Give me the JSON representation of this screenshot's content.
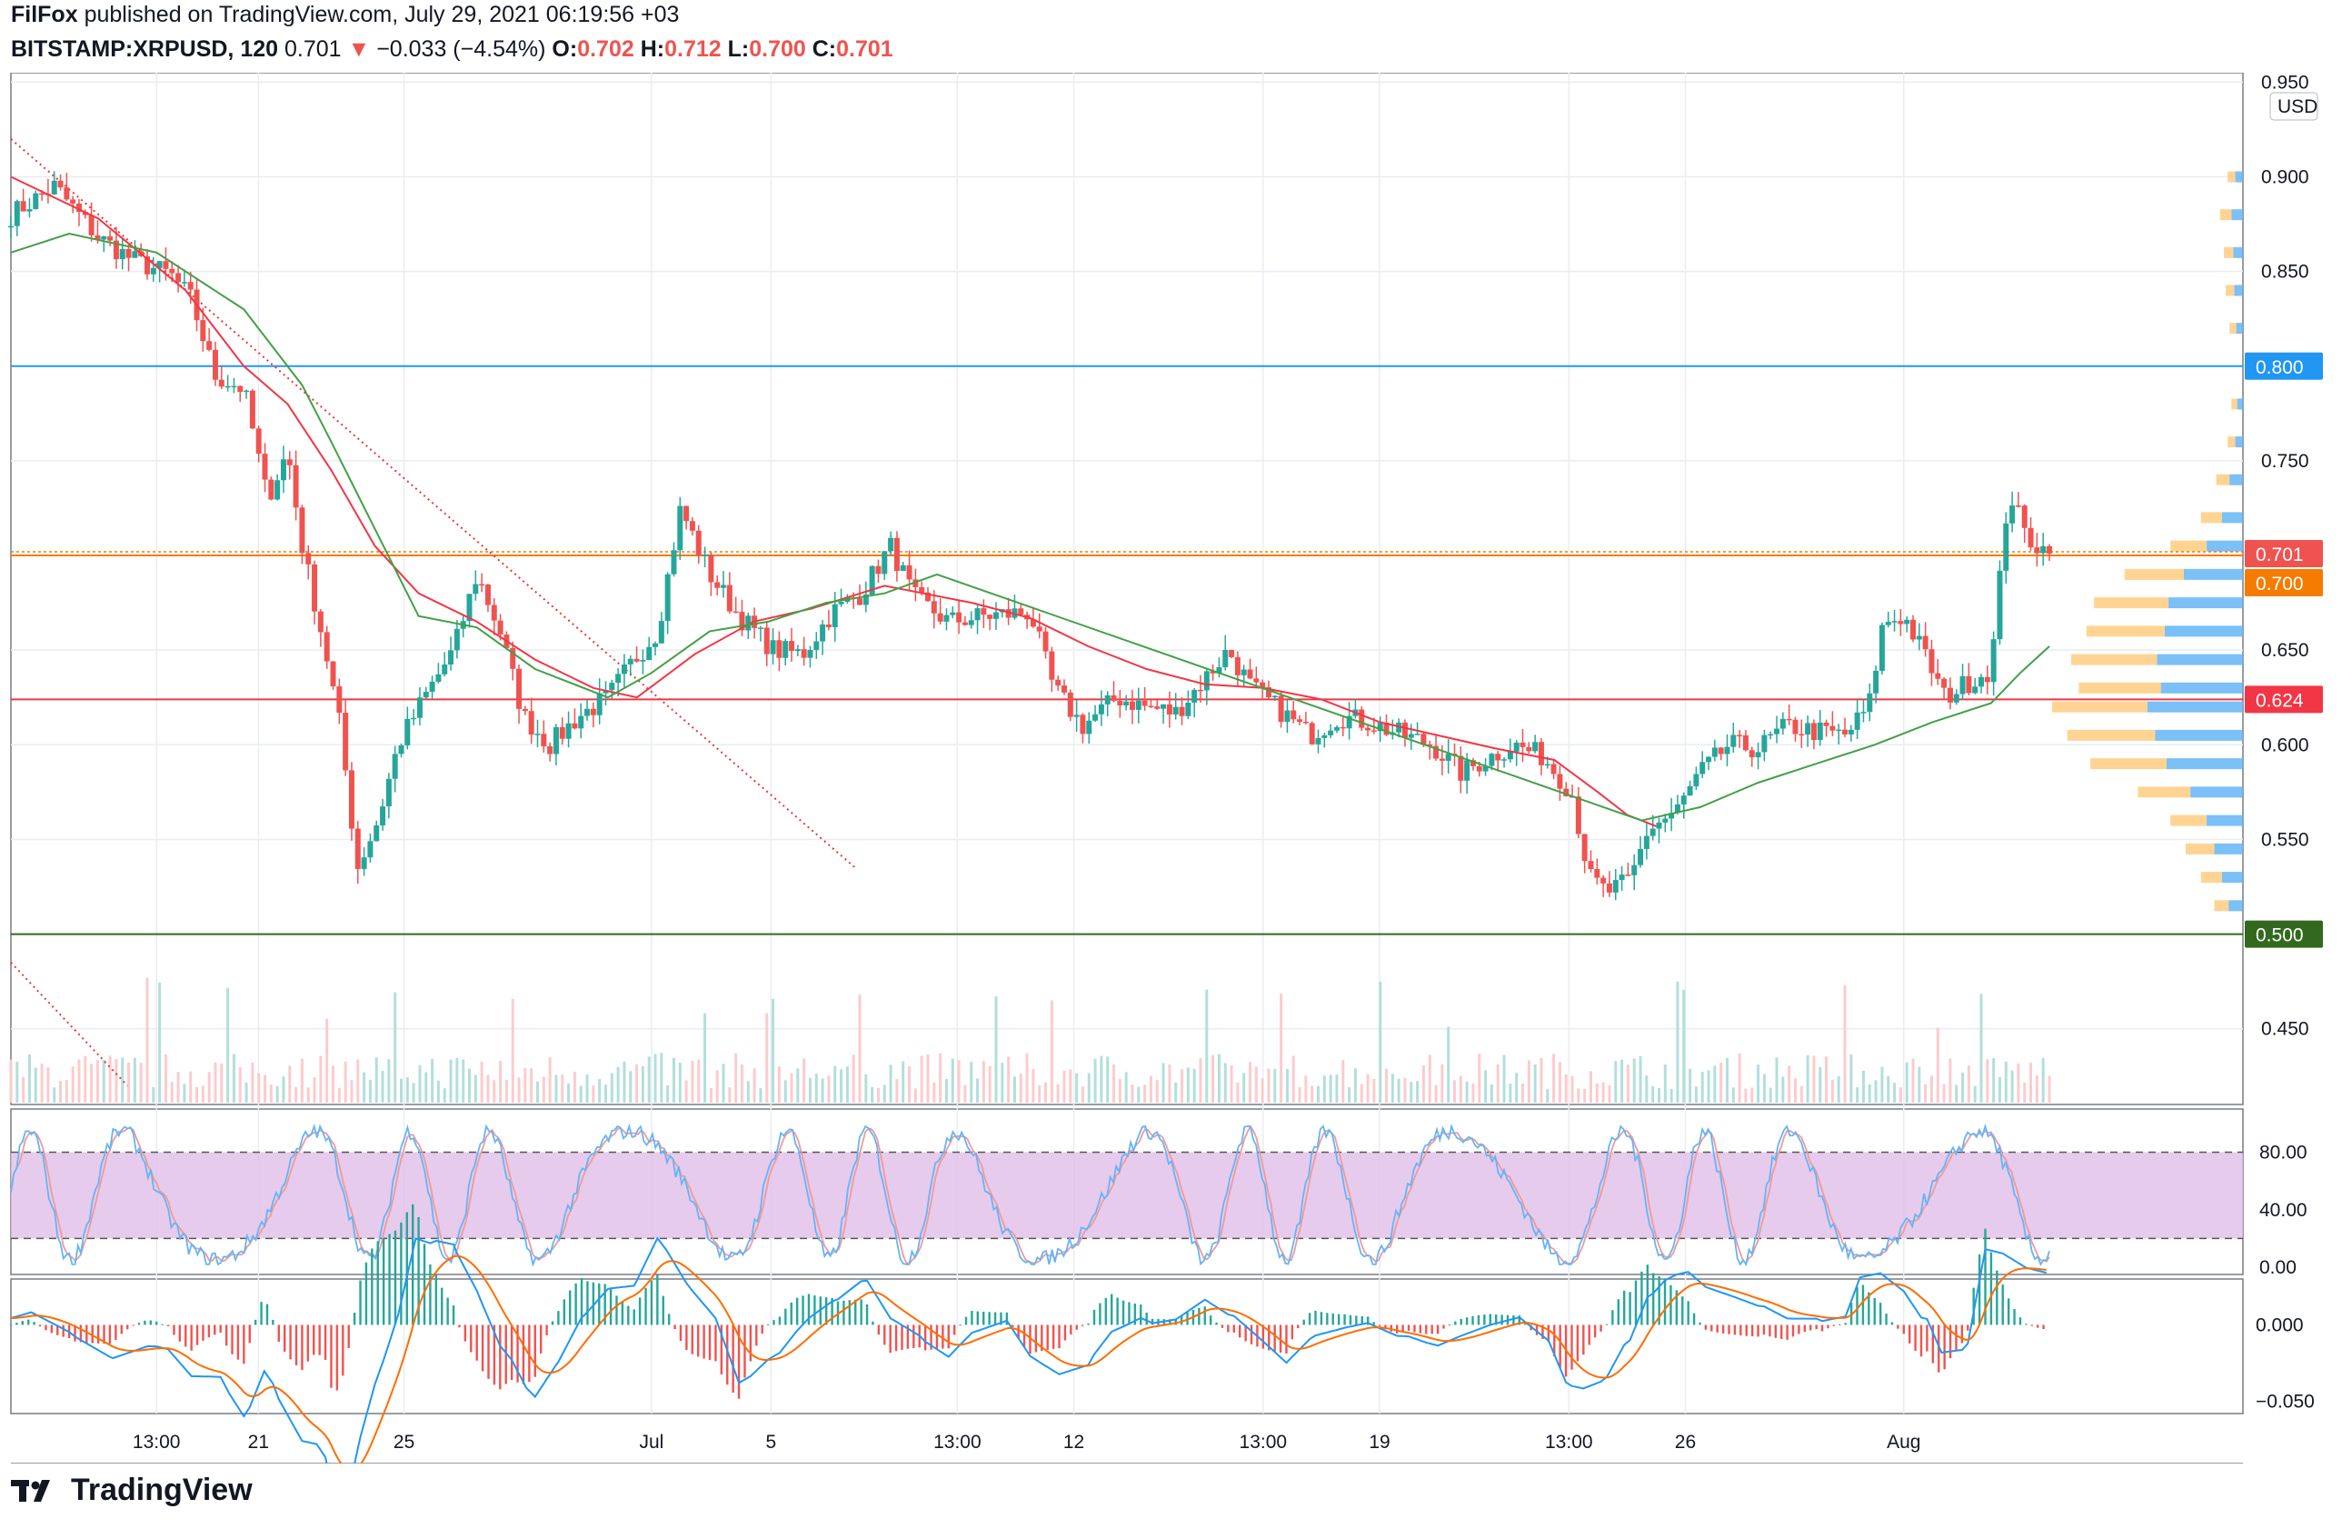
{
  "header": {
    "publisher": "FilFox",
    "published_text": "published on TradingView.com, July 29, 2021 06:19:56 +03",
    "symbol": "BITSTAMP:XRPUSD, 120",
    "last": "0.701",
    "change": "−0.033 (−4.54%)",
    "o_label": "O:",
    "o": "0.702",
    "h_label": "H:",
    "h": "0.712",
    "l_label": "L:",
    "l": "0.700",
    "c_label": "C:",
    "c": "0.701"
  },
  "footer": {
    "brand": "TradingView"
  },
  "colors": {
    "up": "#26a69a",
    "down": "#ef5350",
    "ma_red": "#f23645",
    "ma_green": "#43a047",
    "level_blue": "#2196f3",
    "level_orange": "#f57c00",
    "level_red": "#f23645",
    "level_green": "#33691e",
    "stoch_band": "#e1bee7",
    "macd_blue": "#2196f3",
    "macd_orange": "#ff6d00"
  },
  "chart_data": [
    {
      "type": "candlestick",
      "currency_label": "USD",
      "ylim": [
        0.41,
        0.955
      ],
      "y_ticks": [
        "0.950",
        "0.900",
        "0.850",
        "0.800",
        "0.750",
        "0.700",
        "0.650",
        "0.600",
        "0.550",
        "0.450"
      ],
      "x_ticks": [
        "13:00",
        "21",
        "25",
        "Jul",
        "5",
        "13:00",
        "12",
        "13:00",
        "19",
        "13:00",
        "26",
        "Aug"
      ],
      "price_labels": [
        {
          "label": "0.800",
          "value": 0.8,
          "color": "#2196f3"
        },
        {
          "label": "0.701",
          "value": 0.701,
          "color": "#ef5350"
        },
        {
          "label": "0.700",
          "value": 0.7,
          "color": "#f57c00"
        },
        {
          "label": "0.624",
          "value": 0.624,
          "color": "#f23645"
        },
        {
          "label": "0.500",
          "value": 0.5,
          "color": "#33691e"
        }
      ],
      "horizontal_levels": [
        0.8,
        0.7,
        0.624,
        0.5
      ],
      "price_path": [
        [
          0,
          0.88
        ],
        [
          15,
          0.895
        ],
        [
          30,
          0.868
        ],
        [
          42,
          0.856
        ],
        [
          55,
          0.848
        ],
        [
          62,
          0.835
        ],
        [
          70,
          0.795
        ],
        [
          80,
          0.788
        ],
        [
          88,
          0.73
        ],
        [
          95,
          0.755
        ],
        [
          100,
          0.705
        ],
        [
          108,
          0.65
        ],
        [
          113,
          0.61
        ],
        [
          119,
          0.535
        ],
        [
          126,
          0.56
        ],
        [
          133,
          0.6
        ],
        [
          142,
          0.625
        ],
        [
          152,
          0.65
        ],
        [
          160,
          0.69
        ],
        [
          168,
          0.66
        ],
        [
          176,
          0.615
        ],
        [
          185,
          0.6
        ],
        [
          195,
          0.615
        ],
        [
          205,
          0.625
        ],
        [
          214,
          0.645
        ],
        [
          222,
          0.66
        ],
        [
          230,
          0.725
        ],
        [
          240,
          0.69
        ],
        [
          250,
          0.668
        ],
        [
          262,
          0.65
        ],
        [
          272,
          0.648
        ],
        [
          282,
          0.67
        ],
        [
          292,
          0.68
        ],
        [
          302,
          0.705
        ],
        [
          310,
          0.678
        ],
        [
          322,
          0.665
        ],
        [
          334,
          0.668
        ],
        [
          350,
          0.67
        ],
        [
          358,
          0.63
        ],
        [
          368,
          0.61
        ],
        [
          380,
          0.625
        ],
        [
          390,
          0.62
        ],
        [
          400,
          0.617
        ],
        [
          410,
          0.635
        ],
        [
          418,
          0.65
        ],
        [
          426,
          0.63
        ],
        [
          436,
          0.618
        ],
        [
          446,
          0.605
        ],
        [
          456,
          0.615
        ],
        [
          466,
          0.612
        ],
        [
          478,
          0.605
        ],
        [
          488,
          0.6
        ],
        [
          498,
          0.585
        ],
        [
          506,
          0.592
        ],
        [
          516,
          0.6
        ],
        [
          526,
          0.594
        ],
        [
          536,
          0.575
        ],
        [
          542,
          0.53
        ],
        [
          548,
          0.522
        ],
        [
          556,
          0.528
        ],
        [
          562,
          0.555
        ],
        [
          572,
          0.565
        ],
        [
          580,
          0.585
        ],
        [
          590,
          0.6
        ],
        [
          600,
          0.598
        ],
        [
          610,
          0.61
        ],
        [
          620,
          0.607
        ],
        [
          630,
          0.605
        ],
        [
          638,
          0.62
        ],
        [
          643,
          0.665
        ],
        [
          650,
          0.668
        ],
        [
          658,
          0.645
        ],
        [
          664,
          0.625
        ],
        [
          672,
          0.633
        ],
        [
          680,
          0.64
        ],
        [
          686,
          0.735
        ],
        [
          692,
          0.71
        ],
        [
          700,
          0.701
        ]
      ],
      "ma_red_path": [
        [
          0,
          0.9
        ],
        [
          30,
          0.878
        ],
        [
          60,
          0.84
        ],
        [
          80,
          0.8
        ],
        [
          95,
          0.78
        ],
        [
          110,
          0.745
        ],
        [
          125,
          0.705
        ],
        [
          140,
          0.68
        ],
        [
          160,
          0.665
        ],
        [
          180,
          0.645
        ],
        [
          200,
          0.63
        ],
        [
          215,
          0.625
        ],
        [
          235,
          0.648
        ],
        [
          255,
          0.665
        ],
        [
          275,
          0.672
        ],
        [
          300,
          0.684
        ],
        [
          330,
          0.675
        ],
        [
          350,
          0.667
        ],
        [
          370,
          0.652
        ],
        [
          390,
          0.64
        ],
        [
          410,
          0.632
        ],
        [
          430,
          0.63
        ],
        [
          450,
          0.624
        ],
        [
          470,
          0.612
        ],
        [
          490,
          0.605
        ],
        [
          510,
          0.598
        ],
        [
          530,
          0.592
        ],
        [
          545,
          0.575
        ],
        [
          555,
          0.563
        ],
        [
          565,
          0.557
        ]
      ],
      "ma_green_path": [
        [
          0,
          0.86
        ],
        [
          20,
          0.87
        ],
        [
          50,
          0.86
        ],
        [
          80,
          0.83
        ],
        [
          100,
          0.79
        ],
        [
          110,
          0.76
        ],
        [
          140,
          0.668
        ],
        [
          160,
          0.662
        ],
        [
          180,
          0.64
        ],
        [
          205,
          0.625
        ],
        [
          220,
          0.638
        ],
        [
          240,
          0.66
        ],
        [
          260,
          0.665
        ],
        [
          280,
          0.675
        ],
        [
          300,
          0.68
        ],
        [
          318,
          0.69
        ],
        [
          560,
          0.56
        ],
        [
          580,
          0.567
        ],
        [
          600,
          0.58
        ],
        [
          620,
          0.59
        ],
        [
          640,
          0.6
        ],
        [
          660,
          0.612
        ],
        [
          680,
          0.622
        ],
        [
          690,
          0.638
        ],
        [
          700,
          0.652
        ]
      ],
      "trendlines": [
        {
          "from": [
            0,
            0.92
          ],
          "to": [
            290,
            0.535
          ]
        },
        {
          "from": [
            0,
            0.485
          ],
          "to": [
            40,
            0.42
          ]
        }
      ],
      "volume_profile": [
        [
          0.9,
          0.08
        ],
        [
          0.88,
          0.12
        ],
        [
          0.86,
          0.1
        ],
        [
          0.84,
          0.09
        ],
        [
          0.82,
          0.07
        ],
        [
          0.78,
          0.06
        ],
        [
          0.76,
          0.08
        ],
        [
          0.74,
          0.14
        ],
        [
          0.72,
          0.22
        ],
        [
          0.705,
          0.38
        ],
        [
          0.69,
          0.62
        ],
        [
          0.675,
          0.78
        ],
        [
          0.66,
          0.82
        ],
        [
          0.645,
          0.9
        ],
        [
          0.63,
          0.86
        ],
        [
          0.62,
          1.0
        ],
        [
          0.605,
          0.92
        ],
        [
          0.59,
          0.8
        ],
        [
          0.575,
          0.55
        ],
        [
          0.56,
          0.38
        ],
        [
          0.545,
          0.3
        ],
        [
          0.53,
          0.22
        ],
        [
          0.515,
          0.15
        ]
      ]
    },
    {
      "type": "line",
      "name": "stochastic",
      "ylim": [
        -5,
        110
      ],
      "y_ticks": [
        "80.00",
        "40.00",
        "0.00"
      ],
      "band": [
        20,
        80
      ]
    },
    {
      "type": "line",
      "name": "macd",
      "ylim": [
        -0.058,
        0.03
      ],
      "y_ticks": [
        "0.000",
        "−0.050"
      ]
    }
  ]
}
